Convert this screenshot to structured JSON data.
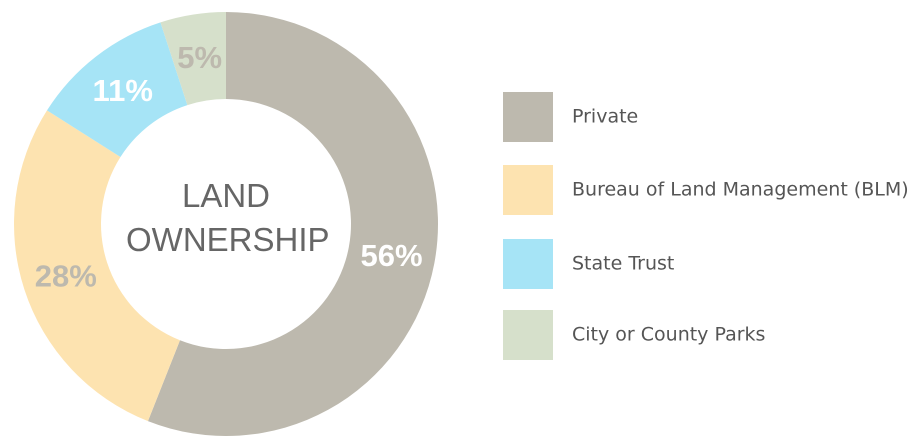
{
  "chart_data": {
    "type": "donut",
    "title": "LAND OWNERSHIP",
    "categories": [
      "Private",
      "Bureau of Land Management (BLM)",
      "State Trust",
      "City or County Parks"
    ],
    "values": [
      56,
      28,
      11,
      5
    ],
    "value_labels": [
      "56%",
      "28%",
      "11%",
      "5%"
    ],
    "colors": [
      "#bdb9ae",
      "#fde3b0",
      "#a6e4f6",
      "#d6e0cb"
    ],
    "label_colors": [
      "#ffffff",
      "#bdb9ae",
      "#ffffff",
      "#bdb9ae"
    ],
    "legend": "right"
  }
}
